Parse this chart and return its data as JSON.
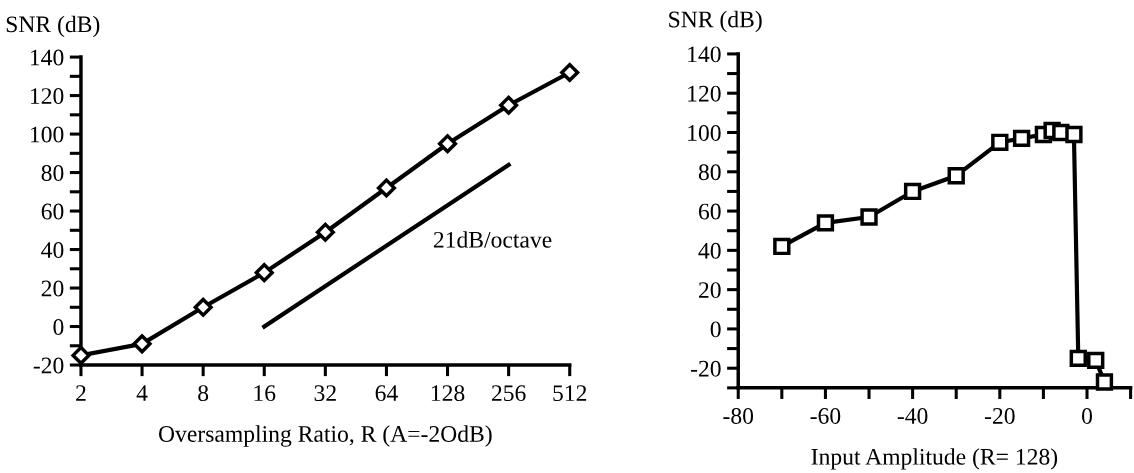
{
  "chart_data": [
    {
      "type": "line",
      "xlabel": "Oversampling Ratio, R (A=-2OdB)",
      "ylabel": "SNR (dB)",
      "log": "x",
      "marker": "diamond",
      "line_style": "solid",
      "xlim": [
        2,
        512
      ],
      "ylim": [
        -20,
        140
      ],
      "xticks": [
        2,
        4,
        8,
        16,
        32,
        64,
        128,
        256,
        512
      ],
      "yticks": [
        -20,
        {
          "value": -10,
          "label": null
        },
        0,
        {
          "value": 10,
          "label": null
        },
        20,
        {
          "value": 30,
          "label": null
        },
        40,
        {
          "value": 50,
          "label": null
        },
        60,
        {
          "value": 70,
          "label": null
        },
        80,
        {
          "value": 90,
          "label": null
        },
        100,
        {
          "value": 110,
          "label": null
        },
        120,
        {
          "value": 130,
          "label": null
        },
        140
      ],
      "x": [
        2,
        4,
        8,
        16,
        32,
        64,
        128,
        256,
        512
      ],
      "series": [
        {
          "color": "#000000",
          "values": [
            -15,
            -9,
            10,
            28,
            49,
            72,
            95,
            115,
            132
          ]
        },
        {
          "type": "line",
          "marker": "none",
          "color": "#000000",
          "x": [
            16,
            256
          ],
          "values": [
            0,
            84
          ]
        }
      ],
      "annotations": [
        "21dB/octave"
      ]
    },
    {
      "type": "line",
      "xlabel": "Input Amplitude (R= 128)",
      "ylabel": "SNR (dB)",
      "marker": "square",
      "line_style": "solid",
      "xlim": [
        -80,
        10
      ],
      "ylim": [
        -30,
        140
      ],
      "xticks": [
        -80,
        {
          "value": -70,
          "label": null
        },
        -60,
        {
          "value": -50,
          "label": null
        },
        -40,
        {
          "value": -30,
          "label": null
        },
        -20,
        {
          "value": -10,
          "label": null
        },
        0,
        {
          "value": 10,
          "label": null
        }
      ],
      "yticks": [
        {
          "value": -30,
          "label": null
        },
        -20,
        {
          "value": -10,
          "label": null
        },
        0,
        {
          "value": 10,
          "label": null
        },
        20,
        {
          "value": 30,
          "label": null
        },
        40,
        {
          "value": 50,
          "label": null
        },
        60,
        {
          "value": 70,
          "label": null
        },
        80,
        {
          "value": 90,
          "label": null
        },
        100,
        {
          "value": 110,
          "label": null
        },
        120,
        {
          "value": 130,
          "label": null
        },
        140
      ],
      "x": [
        -70,
        -60,
        -50,
        -40,
        -30,
        -20,
        -15,
        -10,
        -8,
        -6,
        -3,
        -2,
        2,
        4
      ],
      "series": [
        {
          "color": "#000000",
          "values": [
            42,
            54,
            57,
            70,
            78,
            95,
            97,
            99,
            101,
            100,
            99,
            -15,
            -16,
            -27
          ]
        }
      ]
    }
  ]
}
